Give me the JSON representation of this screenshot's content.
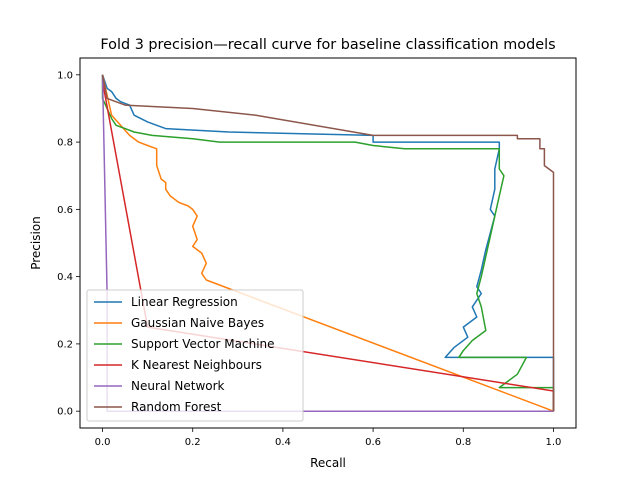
{
  "chart_data": {
    "type": "line",
    "title": "Fold 3 precision—recall curve for baseline classification models",
    "xlabel": "Recall",
    "ylabel": "Precision",
    "xlim": [
      -0.05,
      1.05
    ],
    "ylim": [
      -0.05,
      1.05
    ],
    "xticks": [
      "0.0",
      "0.2",
      "0.4",
      "0.6",
      "0.8",
      "1.0"
    ],
    "yticks": [
      "0.0",
      "0.2",
      "0.4",
      "0.6",
      "0.8",
      "1.0"
    ],
    "grid": false,
    "legend_position": "lower-left",
    "series": [
      {
        "name": "Linear Regression",
        "color": "#1f77b4",
        "points": [
          [
            0.0,
            1.0
          ],
          [
            0.01,
            0.96
          ],
          [
            0.02,
            0.95
          ],
          [
            0.03,
            0.93
          ],
          [
            0.04,
            0.92
          ],
          [
            0.06,
            0.91
          ],
          [
            0.07,
            0.88
          ],
          [
            0.1,
            0.86
          ],
          [
            0.12,
            0.85
          ],
          [
            0.14,
            0.84
          ],
          [
            0.28,
            0.83
          ],
          [
            0.6,
            0.82
          ],
          [
            0.6,
            0.8
          ],
          [
            0.7,
            0.8
          ],
          [
            0.88,
            0.8
          ],
          [
            0.88,
            0.78
          ],
          [
            0.87,
            0.72
          ],
          [
            0.87,
            0.66
          ],
          [
            0.86,
            0.6
          ],
          [
            0.87,
            0.58
          ],
          [
            0.86,
            0.53
          ],
          [
            0.85,
            0.48
          ],
          [
            0.84,
            0.42
          ],
          [
            0.83,
            0.37
          ],
          [
            0.84,
            0.35
          ],
          [
            0.82,
            0.31
          ],
          [
            0.83,
            0.28
          ],
          [
            0.8,
            0.25
          ],
          [
            0.81,
            0.22
          ],
          [
            0.78,
            0.19
          ],
          [
            0.76,
            0.16
          ],
          [
            1.0,
            0.16
          ],
          [
            1.0,
            0.0
          ]
        ]
      },
      {
        "name": "Gaussian Naive Bayes",
        "color": "#ff7f0e",
        "points": [
          [
            0.0,
            1.0
          ],
          [
            0.02,
            0.88
          ],
          [
            0.04,
            0.85
          ],
          [
            0.06,
            0.82
          ],
          [
            0.08,
            0.8
          ],
          [
            0.1,
            0.79
          ],
          [
            0.12,
            0.78
          ],
          [
            0.12,
            0.73
          ],
          [
            0.13,
            0.69
          ],
          [
            0.14,
            0.68
          ],
          [
            0.14,
            0.66
          ],
          [
            0.15,
            0.64
          ],
          [
            0.16,
            0.63
          ],
          [
            0.17,
            0.62
          ],
          [
            0.19,
            0.61
          ],
          [
            0.2,
            0.6
          ],
          [
            0.21,
            0.58
          ],
          [
            0.2,
            0.55
          ],
          [
            0.21,
            0.51
          ],
          [
            0.2,
            0.49
          ],
          [
            0.22,
            0.47
          ],
          [
            0.23,
            0.44
          ],
          [
            0.22,
            0.41
          ],
          [
            0.23,
            0.39
          ],
          [
            1.0,
            0.0
          ]
        ]
      },
      {
        "name": "Support Vector Machine",
        "color": "#2ca02c",
        "points": [
          [
            0.0,
            1.0
          ],
          [
            0.0,
            0.93
          ],
          [
            0.01,
            0.9
          ],
          [
            0.02,
            0.87
          ],
          [
            0.03,
            0.85
          ],
          [
            0.05,
            0.84
          ],
          [
            0.07,
            0.83
          ],
          [
            0.11,
            0.82
          ],
          [
            0.2,
            0.81
          ],
          [
            0.26,
            0.8
          ],
          [
            0.56,
            0.8
          ],
          [
            0.6,
            0.79
          ],
          [
            0.67,
            0.78
          ],
          [
            0.88,
            0.78
          ],
          [
            0.88,
            0.72
          ],
          [
            0.89,
            0.7
          ],
          [
            0.88,
            0.64
          ],
          [
            0.87,
            0.58
          ],
          [
            0.86,
            0.52
          ],
          [
            0.85,
            0.46
          ],
          [
            0.84,
            0.4
          ],
          [
            0.83,
            0.35
          ],
          [
            0.84,
            0.31
          ],
          [
            0.85,
            0.24
          ],
          [
            0.82,
            0.21
          ],
          [
            0.8,
            0.18
          ],
          [
            0.79,
            0.16
          ],
          [
            0.94,
            0.16
          ],
          [
            0.92,
            0.11
          ],
          [
            0.88,
            0.07
          ],
          [
            1.0,
            0.07
          ],
          [
            1.0,
            0.0
          ]
        ]
      },
      {
        "name": "K Nearest Neighbours",
        "color": "#d62728",
        "points": [
          [
            0.0,
            0.98
          ],
          [
            0.1,
            0.25
          ],
          [
            1.0,
            0.06
          ],
          [
            1.0,
            0.0
          ]
        ]
      },
      {
        "name": "Neural Network",
        "color": "#9467bd",
        "points": [
          [
            0.0,
            1.0
          ],
          [
            0.01,
            0.35
          ],
          [
            0.01,
            0.0
          ],
          [
            1.0,
            0.0
          ]
        ]
      },
      {
        "name": "Random Forest",
        "color": "#8c564b",
        "points": [
          [
            0.0,
            1.0
          ],
          [
            0.01,
            0.93
          ],
          [
            0.05,
            0.91
          ],
          [
            0.2,
            0.9
          ],
          [
            0.34,
            0.88
          ],
          [
            0.6,
            0.82
          ],
          [
            0.62,
            0.82
          ],
          [
            0.92,
            0.82
          ],
          [
            0.92,
            0.81
          ],
          [
            0.97,
            0.81
          ],
          [
            0.97,
            0.78
          ],
          [
            0.98,
            0.78
          ],
          [
            0.98,
            0.73
          ],
          [
            1.0,
            0.71
          ],
          [
            1.0,
            0.0
          ]
        ]
      }
    ]
  }
}
